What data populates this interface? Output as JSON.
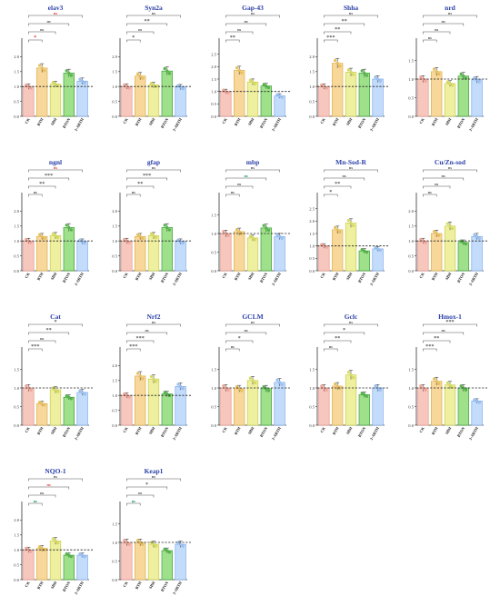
{
  "categories": [
    "CK",
    "BTH",
    "SBH",
    "BTON",
    "2-ABTH"
  ],
  "colors": {
    "bar_fill": [
      "#f7c6bc",
      "#f7d79a",
      "#eef0a0",
      "#9fe08a",
      "#c3dcfb"
    ],
    "bar_stroke": [
      "#e89a8d",
      "#dfb04a",
      "#c8cc4c",
      "#3fa03a",
      "#7fa9e6"
    ],
    "dot_fill": [
      "#f2a79a",
      "#e8c25e",
      "#d9dc62",
      "#59b64c",
      "#9ec3f2"
    ],
    "sig_red": "#e8392b",
    "sig_green": "#1b9a5a",
    "title": "#2a3fa8"
  },
  "chart_data": [
    {
      "type": "bar",
      "title": "elav3",
      "ylim": [
        0,
        2.5
      ],
      "yticks": [
        "0.0",
        "0.5",
        "1.0",
        "1.5",
        "2.0"
      ],
      "values": [
        1.0,
        1.62,
        1.08,
        1.45,
        1.18
      ],
      "sig": [
        {
          "label": "*",
          "color": "red"
        },
        {
          "label": "ns",
          "color": "dark"
        },
        {
          "label": "ns",
          "color": "dark"
        },
        {
          "label": "ns",
          "color": "red"
        }
      ]
    },
    {
      "type": "bar",
      "title": "Syn2a",
      "ylim": [
        0,
        2.5
      ],
      "yticks": [
        "0.0",
        "0.5",
        "1.0",
        "1.5",
        "2.0"
      ],
      "values": [
        1.0,
        1.35,
        1.05,
        1.52,
        0.98
      ],
      "sig": [
        {
          "label": "*",
          "color": "dark"
        },
        {
          "label": "ns",
          "color": "dark"
        },
        {
          "label": "**",
          "color": "dark"
        },
        {
          "label": "ns",
          "color": "dark"
        }
      ]
    },
    {
      "type": "bar",
      "title": "Gap-43",
      "ylim": [
        0,
        3.0
      ],
      "yticks": [
        "0.0",
        "0.5",
        "1.0",
        "1.5",
        "2.0",
        "2.5"
      ],
      "values": [
        1.0,
        1.85,
        1.38,
        1.22,
        0.82
      ],
      "sig": [
        {
          "label": "**",
          "color": "dark"
        },
        {
          "label": "ns",
          "color": "dark"
        },
        {
          "label": "ns",
          "color": "dark"
        },
        {
          "label": "ns",
          "color": "dark"
        }
      ]
    },
    {
      "type": "bar",
      "title": "Shha",
      "ylim": [
        0,
        2.5
      ],
      "yticks": [
        "0.0",
        "0.5",
        "1.0",
        "1.5",
        "2.0"
      ],
      "values": [
        1.0,
        1.78,
        1.48,
        1.45,
        1.25
      ],
      "sig": [
        {
          "label": "***",
          "color": "dark"
        },
        {
          "label": "**",
          "color": "dark"
        },
        {
          "label": "**",
          "color": "dark"
        },
        {
          "label": "ns",
          "color": "dark"
        }
      ]
    },
    {
      "type": "bar",
      "title": "nrd",
      "ylim": [
        0,
        2.0
      ],
      "yticks": [
        "0.0",
        "0.5",
        "1.0",
        "1.5"
      ],
      "values": [
        1.0,
        1.2,
        0.88,
        1.08,
        0.98
      ],
      "sig": [
        {
          "label": "ns",
          "color": "dark"
        },
        {
          "label": "ns",
          "color": "dark"
        },
        {
          "label": "ns",
          "color": "dark"
        },
        {
          "label": "ns",
          "color": "dark"
        }
      ]
    },
    {
      "type": "bar",
      "title": "ngnl",
      "ylim": [
        0,
        2.5
      ],
      "yticks": [
        "0.0",
        "0.5",
        "1.0",
        "1.5",
        "2.0"
      ],
      "values": [
        1.0,
        1.15,
        1.18,
        1.45,
        0.98
      ],
      "sig": [
        {
          "label": "ns",
          "color": "dark"
        },
        {
          "label": "**",
          "color": "dark"
        },
        {
          "label": "***",
          "color": "dark"
        },
        {
          "label": "ns",
          "color": "red"
        }
      ]
    },
    {
      "type": "bar",
      "title": "gfap",
      "ylim": [
        0,
        2.5
      ],
      "yticks": [
        "0.0",
        "0.5",
        "1.0",
        "1.5",
        "2.0"
      ],
      "values": [
        1.0,
        1.15,
        1.18,
        1.45,
        0.98
      ],
      "sig": [
        {
          "label": "ns",
          "color": "dark"
        },
        {
          "label": "**",
          "color": "dark"
        },
        {
          "label": "***",
          "color": "dark"
        },
        {
          "label": "ns",
          "color": "dark"
        }
      ]
    },
    {
      "type": "bar",
      "title": "mbp",
      "ylim": [
        0,
        2.0
      ],
      "yticks": [
        "0.0",
        "0.5",
        "1.0",
        "1.5"
      ],
      "values": [
        1.0,
        1.05,
        0.88,
        1.15,
        0.92
      ],
      "sig": [
        {
          "label": "ns",
          "color": "dark"
        },
        {
          "label": "ns",
          "color": "dark"
        },
        {
          "label": "ns",
          "color": "green"
        },
        {
          "label": "ns",
          "color": "dark"
        }
      ]
    },
    {
      "type": "bar",
      "title": "Mn-Sod-R",
      "ylim": [
        0,
        3.0
      ],
      "yticks": [
        "0.0",
        "0.5",
        "1.0",
        "1.5",
        "2.0",
        "2.5"
      ],
      "values": [
        1.0,
        1.65,
        1.92,
        0.8,
        0.88
      ],
      "sig": [
        {
          "label": "*",
          "color": "dark"
        },
        {
          "label": "**",
          "color": "dark"
        },
        {
          "label": "ns",
          "color": "dark"
        },
        {
          "label": "ns",
          "color": "dark"
        }
      ]
    },
    {
      "type": "bar",
      "title": "Cu/Zn-sod",
      "ylim": [
        0,
        2.5
      ],
      "yticks": [
        "0.0",
        "0.5",
        "1.0",
        "1.5",
        "2.0"
      ],
      "values": [
        1.0,
        1.25,
        1.5,
        0.95,
        1.15
      ],
      "sig": [
        {
          "label": "ns",
          "color": "dark"
        },
        {
          "label": "ns",
          "color": "dark"
        },
        {
          "label": "ns",
          "color": "dark"
        },
        {
          "label": "ns",
          "color": "dark"
        }
      ]
    },
    {
      "type": "bar",
      "title": "Cat",
      "ylim": [
        0,
        2.0
      ],
      "yticks": [
        "0.0",
        "0.5",
        "1.0",
        "1.5"
      ],
      "values": [
        1.0,
        0.58,
        0.95,
        0.75,
        0.88
      ],
      "sig": [
        {
          "label": "***",
          "color": "dark"
        },
        {
          "label": "ns",
          "color": "dark"
        },
        {
          "label": "**",
          "color": "dark"
        },
        {
          "label": "*",
          "color": "dark"
        }
      ]
    },
    {
      "type": "bar",
      "title": "Nrf2",
      "ylim": [
        0,
        2.5
      ],
      "yticks": [
        "0.0",
        "0.5",
        "1.0",
        "1.5",
        "2.0"
      ],
      "values": [
        1.0,
        1.65,
        1.55,
        1.05,
        1.3
      ],
      "sig": [
        {
          "label": "***",
          "color": "dark"
        },
        {
          "label": "***",
          "color": "dark"
        },
        {
          "label": "ns",
          "color": "dark"
        },
        {
          "label": "ns",
          "color": "dark"
        }
      ]
    },
    {
      "type": "bar",
      "title": "GCLM",
      "ylim": [
        0,
        2.0
      ],
      "yticks": [
        "0.0",
        "0.5",
        "1.0",
        "1.5"
      ],
      "values": [
        1.0,
        0.98,
        1.2,
        0.98,
        1.15
      ],
      "sig": [
        {
          "label": "ns",
          "color": "dark"
        },
        {
          "label": "*",
          "color": "dark"
        },
        {
          "label": "ns",
          "color": "dark"
        },
        {
          "label": "ns",
          "color": "dark"
        }
      ]
    },
    {
      "type": "bar",
      "title": "Gclc",
      "ylim": [
        0,
        2.0
      ],
      "yticks": [
        "0.0",
        "0.5",
        "1.0",
        "1.5"
      ],
      "values": [
        1.0,
        1.05,
        1.35,
        0.82,
        1.0
      ],
      "sig": [
        {
          "label": "ns",
          "color": "dark"
        },
        {
          "label": "**",
          "color": "dark"
        },
        {
          "label": "*",
          "color": "dark"
        },
        {
          "label": "ns",
          "color": "dark"
        }
      ]
    },
    {
      "type": "bar",
      "title": "Hmox-1",
      "ylim": [
        0,
        2.0
      ],
      "yticks": [
        "0.0",
        "0.5",
        "1.0",
        "1.5"
      ],
      "values": [
        1.0,
        1.18,
        1.08,
        1.0,
        0.65
      ],
      "sig": [
        {
          "label": "***",
          "color": "dark"
        },
        {
          "label": "**",
          "color": "dark"
        },
        {
          "label": "ns",
          "color": "dark"
        },
        {
          "label": "***",
          "color": "dark"
        }
      ]
    },
    {
      "type": "bar",
      "title": "NQO-1",
      "ylim": [
        0,
        2.5
      ],
      "yticks": [
        "0.0",
        "0.5",
        "1.0",
        "1.5",
        "2.0"
      ],
      "values": [
        1.0,
        1.05,
        1.3,
        0.82,
        0.82
      ],
      "sig": [
        {
          "label": "ns",
          "color": "green"
        },
        {
          "label": "ns",
          "color": "dark"
        },
        {
          "label": "ns",
          "color": "red"
        },
        {
          "label": "ns",
          "color": "dark"
        }
      ]
    },
    {
      "type": "bar",
      "title": "Keap1",
      "ylim": [
        0,
        2.0
      ],
      "yticks": [
        "0.0",
        "0.5",
        "1.0",
        "1.5"
      ],
      "values": [
        1.0,
        1.0,
        0.95,
        0.78,
        0.95
      ],
      "sig": [
        {
          "label": "ns",
          "color": "green"
        },
        {
          "label": "ns",
          "color": "dark"
        },
        {
          "label": "*",
          "color": "dark"
        },
        {
          "label": "ns",
          "color": "dark"
        }
      ]
    }
  ]
}
